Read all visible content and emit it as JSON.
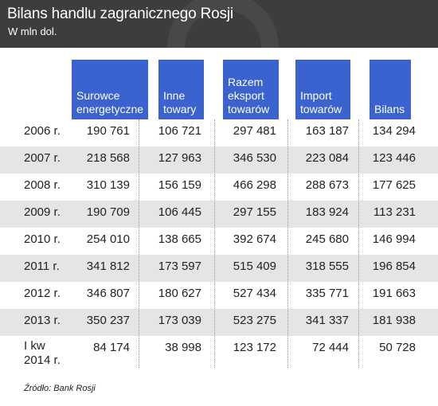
{
  "header": {
    "title": "Bilans handlu zagranicznego Rosji",
    "subtitle": "W mln dol."
  },
  "columns": [
    {
      "line1": "Surowce",
      "line2": "energetyczne",
      "line3": ""
    },
    {
      "line1": "Inne",
      "line2": "towary",
      "line3": ""
    },
    {
      "line1": "Razem",
      "line2": "eksport",
      "line3": "towarów"
    },
    {
      "line1": "Import",
      "line2": "towarów",
      "line3": ""
    },
    {
      "line1": "Bilans",
      "line2": "",
      "line3": ""
    }
  ],
  "rows": [
    {
      "year": "2006 r.",
      "values": [
        "190 761",
        "106 721",
        "297 481",
        "163 187",
        "134 294"
      ]
    },
    {
      "year": "2007 r.",
      "values": [
        "218 568",
        "127 963",
        "346 530",
        "223 084",
        "123 446"
      ]
    },
    {
      "year": "2008 r.",
      "values": [
        "310 139",
        "156 159",
        "466 298",
        "288 673",
        "177 625"
      ]
    },
    {
      "year": "2009 r.",
      "values": [
        "190 709",
        "106 445",
        "297 155",
        "183 924",
        "113 231"
      ]
    },
    {
      "year": "2010 r.",
      "values": [
        "254 010",
        "138 665",
        "392 674",
        "245 680",
        "146 994"
      ]
    },
    {
      "year": "2011 r.",
      "values": [
        "341 812",
        "173 597",
        "515 409",
        "318 555",
        "196 854"
      ]
    },
    {
      "year": "2012 r.",
      "values": [
        "346 807",
        "180 627",
        "527 434",
        "335 771",
        "191 663"
      ]
    },
    {
      "year": "2013 r.",
      "values": [
        "350 237",
        "173 039",
        "523 275",
        "341 337",
        "181 938"
      ]
    },
    {
      "year": "I kw 2014 r.",
      "values": [
        "84 174",
        "38 998",
        "123 172",
        "72 444",
        "50 728"
      ]
    }
  ],
  "source": "Źródło: Bank Rosji",
  "colors": {
    "header_bg": "#3d3d3d",
    "column_header_bg": "#3a63d0",
    "row_stripe": "#e5e5e5"
  }
}
